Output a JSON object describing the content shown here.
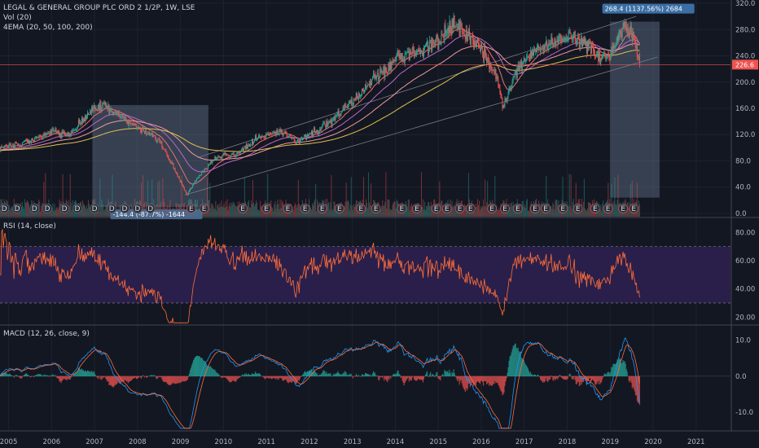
{
  "header": {
    "title": "LEGAL & GENERAL GROUP PLC ORD 2 1/2P, 1W, LSE",
    "vol_label": "Vol (20)",
    "ema_label": "4EMA (20, 50, 100, 200)"
  },
  "rsi_label": "RSI (14, close)",
  "macd_label": "MACD (12, 26, close, 9)",
  "colors": {
    "bg": "#131722",
    "up": "#26a69a",
    "down": "#ef5350",
    "ema20": "#e57373",
    "ema50": "#ba68c8",
    "ema100": "#ef9a9a",
    "ema200": "#e0c050",
    "rsi": "#ff6d3a",
    "rsi_band": "#2a1f4a",
    "macd": "#2196f3",
    "signal": "#ff6d3a",
    "grid": "#1e222d",
    "range_box": "rgba(120,140,170,0.35)"
  },
  "chart_data": [
    {
      "type": "candlestick",
      "name": "price",
      "x_range": [
        2004.8,
        2021.8
      ],
      "ylim": [
        -5,
        325
      ],
      "y_ticks": [
        0,
        40,
        80,
        120,
        160,
        200,
        240,
        280,
        320
      ],
      "y_tick_labels": [
        "0.0",
        "40.0",
        "80.0",
        "120.0",
        "160.0",
        "200.0",
        "240.0",
        "280.0",
        "320.0"
      ],
      "last_price": 226.6,
      "last_price_label": "226.6",
      "key_points": [
        [
          2004.8,
          100
        ],
        [
          2005.5,
          110
        ],
        [
          2006.0,
          125
        ],
        [
          2006.4,
          118
        ],
        [
          2006.9,
          155
        ],
        [
          2007.2,
          165
        ],
        [
          2007.6,
          150
        ],
        [
          2008.0,
          130
        ],
        [
          2008.5,
          112
        ],
        [
          2008.8,
          75
        ],
        [
          2009.15,
          28
        ],
        [
          2009.4,
          55
        ],
        [
          2009.8,
          85
        ],
        [
          2010.3,
          90
        ],
        [
          2010.8,
          115
        ],
        [
          2011.3,
          125
        ],
        [
          2011.7,
          110
        ],
        [
          2012.0,
          120
        ],
        [
          2012.5,
          140
        ],
        [
          2013.0,
          170
        ],
        [
          2013.5,
          205
        ],
        [
          2014.0,
          235
        ],
        [
          2014.5,
          245
        ],
        [
          2015.0,
          262
        ],
        [
          2015.35,
          290
        ],
        [
          2015.7,
          268
        ],
        [
          2016.0,
          250
        ],
        [
          2016.35,
          215
        ],
        [
          2016.5,
          160
        ],
        [
          2016.8,
          215
        ],
        [
          2017.2,
          245
        ],
        [
          2017.6,
          258
        ],
        [
          2018.0,
          272
        ],
        [
          2018.4,
          262
        ],
        [
          2018.8,
          238
        ],
        [
          2019.0,
          240
        ],
        [
          2019.35,
          290
        ],
        [
          2019.55,
          265
        ],
        [
          2019.7,
          226.6
        ]
      ],
      "range_annotations": [
        {
          "x0": 2006.95,
          "x1": 2009.65,
          "y0": 10,
          "y1": 165,
          "label": "-144.4 (-87.7%) -1644"
        },
        {
          "x0": 2019.0,
          "x1": 2020.15,
          "y0": 24,
          "y1": 292,
          "label": "268.4 (1137.56%) 2684"
        }
      ],
      "dividend_marker_label": "D",
      "earnings_marker_label": "E",
      "dividend_markers_x": [
        2004.9,
        2005.2,
        2005.6,
        2005.9,
        2006.3,
        2006.6,
        2007.0,
        2007.4,
        2007.7,
        2008.0,
        2008.3
      ],
      "earnings_markers_x": [
        2009.25,
        2009.55,
        2010.45,
        2011.0,
        2011.5,
        2011.9,
        2012.3,
        2012.7,
        2013.2,
        2013.55,
        2014.15,
        2014.5,
        2014.95,
        2015.2,
        2015.5,
        2015.75,
        2016.25,
        2016.55,
        2016.85,
        2017.25,
        2017.5,
        2017.9,
        2018.25,
        2018.65,
        2018.95,
        2019.3,
        2019.55
      ]
    },
    {
      "type": "line",
      "name": "rsi",
      "ylim": [
        15,
        90
      ],
      "y_ticks": [
        20,
        40,
        60,
        80
      ],
      "y_tick_labels": [
        "20.00",
        "40.00",
        "60.00",
        "80.00"
      ],
      "upper_band": 70,
      "lower_band": 30
    },
    {
      "type": "line+bar",
      "name": "macd",
      "ylim": [
        -15,
        14
      ],
      "y_ticks": [
        -10,
        0,
        10
      ],
      "y_tick_labels": [
        "-10.0",
        "0.0",
        "10.0"
      ]
    }
  ],
  "x_axis": {
    "labels": [
      "2005",
      "2006",
      "2007",
      "2008",
      "2009",
      "2010",
      "2011",
      "2012",
      "2013",
      "2014",
      "2015",
      "2016",
      "2017",
      "2018",
      "2019",
      "2020",
      "2021"
    ],
    "values": [
      2005,
      2006,
      2007,
      2008,
      2009,
      2010,
      2011,
      2012,
      2013,
      2014,
      2015,
      2016,
      2017,
      2018,
      2019,
      2020,
      2021
    ]
  }
}
